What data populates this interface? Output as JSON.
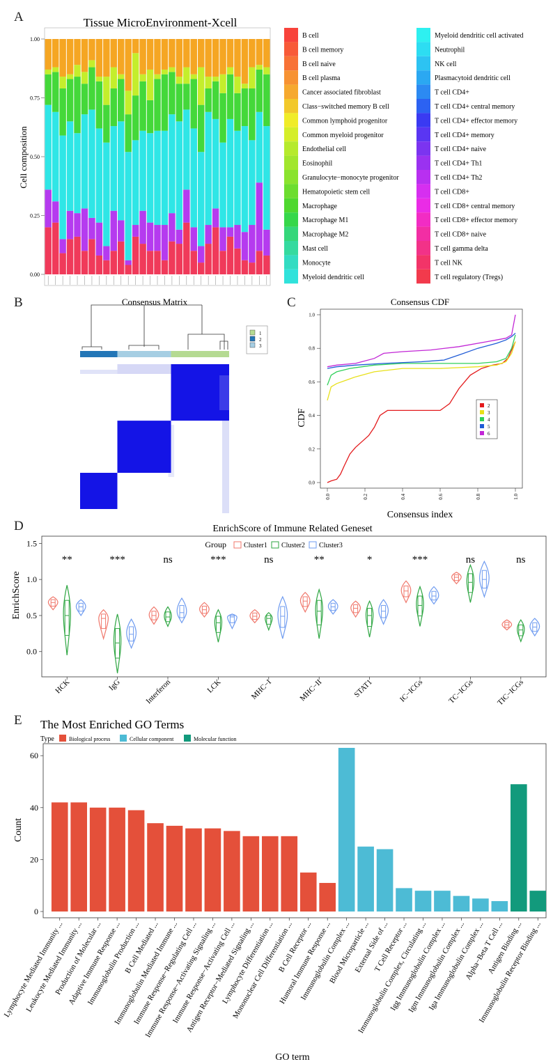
{
  "panels": {
    "A": "A",
    "B": "B",
    "C": "C",
    "D": "D",
    "E": "E"
  },
  "colors": {
    "gold": "#F5A623",
    "cluster1": "#F0776B",
    "cluster2": "#2EA642",
    "cluster3": "#6E9BF0",
    "bp": "#E4503A",
    "cc": "#4DBBD5",
    "mf": "#129A7C",
    "heat": "#1414E6"
  },
  "chart_data": [
    {
      "type": "bar",
      "stacked": true,
      "title": "Tissue MicroEnvironment-Xcell",
      "xlabel": "",
      "ylabel": "Cell composition",
      "ylim": [
        0,
        1
      ],
      "yticks": [
        "0.00",
        "0.25",
        "0.50",
        "0.75",
        "1.00"
      ],
      "n_samples": 31,
      "legend_position": "right",
      "cell_types": [
        {
          "name": "B cell",
          "color": "#F8433B"
        },
        {
          "name": "B cell memory",
          "color": "#F85A38"
        },
        {
          "name": "B cell naive",
          "color": "#F87236"
        },
        {
          "name": "B cell plasma",
          "color": "#F79232"
        },
        {
          "name": "Cancer associated fibroblast",
          "color": "#F6A92F"
        },
        {
          "name": "Class−switched memory B cell",
          "color": "#F2C82B"
        },
        {
          "name": "Common lymphoid progenitor",
          "color": "#F0EC29"
        },
        {
          "name": "Common myeloid progenitor",
          "color": "#D5EE2A"
        },
        {
          "name": "Endothelial cell",
          "color": "#B6EA2C"
        },
        {
          "name": "Eosinophil",
          "color": "#A2E62D"
        },
        {
          "name": "Granulocyte−monocyte progenitor",
          "color": "#8AE32E"
        },
        {
          "name": "Hematopoietic stem cell",
          "color": "#6CDD2F"
        },
        {
          "name": "Macrophage",
          "color": "#4FD82F"
        },
        {
          "name": "Macrophage M1",
          "color": "#36D74A"
        },
        {
          "name": "Macrophage M2",
          "color": "#35D77A"
        },
        {
          "name": "Mast cell",
          "color": "#35DA9F"
        },
        {
          "name": "Monocyte",
          "color": "#33DCC2"
        },
        {
          "name": "Myeloid dendritic cell",
          "color": "#30E2DB"
        },
        {
          "name": "Myeloid dendritic cell activated",
          "color": "#2EF0F0"
        },
        {
          "name": "Neutrophil",
          "color": "#2DDDF2"
        },
        {
          "name": "NK cell",
          "color": "#2DC3F2"
        },
        {
          "name": "Plasmacytoid dendritic cell",
          "color": "#2BA8F2"
        },
        {
          "name": "T cell CD4+",
          "color": "#2C8AF2"
        },
        {
          "name": "T cell CD4+ central memory",
          "color": "#2C62F2"
        },
        {
          "name": "T cell CD4+ effector memory",
          "color": "#3A3AF2"
        },
        {
          "name": "T cell CD4+ memory",
          "color": "#5A36F2"
        },
        {
          "name": "T cell CD4+ naive",
          "color": "#7B34F0"
        },
        {
          "name": "T cell CD4+ Th1",
          "color": "#9A32F0"
        },
        {
          "name": "T cell CD4+ Th2",
          "color": "#B830F0"
        },
        {
          "name": "T cell CD8+",
          "color": "#D62FF0"
        },
        {
          "name": "T cell CD8+ central memory",
          "color": "#EA2CE6"
        },
        {
          "name": "T cell CD8+ effector memory",
          "color": "#F22CC4"
        },
        {
          "name": "T cell CD8+ naive",
          "color": "#F22EA4"
        },
        {
          "name": "T cell gamma delta",
          "color": "#F23288"
        },
        {
          "name": "T cell NK",
          "color": "#F23468"
        },
        {
          "name": "T cell regulatory (Tregs)",
          "color": "#F23A4C"
        }
      ],
      "groups_note": "values per sample for grouped cell types: reds, blue/purple, cyan, green, yellow, orange",
      "group_colors": [
        "#F03A5A",
        "#B53BEF",
        "#2FE6E6",
        "#44D83A",
        "#C4EE2C",
        "#F5A623"
      ],
      "samples": [
        [
          0.2,
          0.16,
          0.36,
          0.13,
          0.02,
          0.13
        ],
        [
          0.22,
          0.09,
          0.38,
          0.17,
          0.02,
          0.12
        ],
        [
          0.09,
          0.06,
          0.44,
          0.2,
          0.05,
          0.16
        ],
        [
          0.15,
          0.12,
          0.38,
          0.18,
          0.02,
          0.15
        ],
        [
          0.16,
          0.1,
          0.34,
          0.24,
          0.05,
          0.11
        ],
        [
          0.1,
          0.18,
          0.4,
          0.13,
          0.05,
          0.14
        ],
        [
          0.15,
          0.09,
          0.46,
          0.18,
          0.03,
          0.09
        ],
        [
          0.08,
          0.14,
          0.4,
          0.2,
          0.02,
          0.16
        ],
        [
          0.06,
          0.06,
          0.44,
          0.16,
          0.12,
          0.16
        ],
        [
          0.1,
          0.17,
          0.36,
          0.16,
          0.09,
          0.12
        ],
        [
          0.14,
          0.09,
          0.42,
          0.18,
          0.02,
          0.15
        ],
        [
          0.04,
          0.02,
          0.46,
          0.16,
          0.1,
          0.22
        ],
        [
          0.16,
          0.05,
          0.36,
          0.19,
          0.18,
          0.06
        ],
        [
          0.13,
          0.14,
          0.34,
          0.21,
          0.03,
          0.15
        ],
        [
          0.1,
          0.12,
          0.38,
          0.14,
          0.13,
          0.13
        ],
        [
          0.1,
          0.11,
          0.4,
          0.22,
          0.02,
          0.15
        ],
        [
          0.06,
          0.15,
          0.4,
          0.24,
          0.02,
          0.13
        ],
        [
          0.14,
          0.12,
          0.42,
          0.18,
          0.02,
          0.12
        ],
        [
          0.13,
          0.06,
          0.46,
          0.16,
          0.03,
          0.16
        ],
        [
          0.22,
          0.14,
          0.34,
          0.11,
          0.07,
          0.12
        ],
        [
          0.1,
          0.1,
          0.42,
          0.21,
          0.02,
          0.15
        ],
        [
          0.05,
          0.07,
          0.4,
          0.2,
          0.16,
          0.12
        ],
        [
          0.13,
          0.08,
          0.48,
          0.1,
          0.05,
          0.16
        ],
        [
          0.2,
          0.08,
          0.38,
          0.16,
          0.02,
          0.16
        ],
        [
          0.1,
          0.1,
          0.36,
          0.21,
          0.08,
          0.15
        ],
        [
          0.16,
          0.04,
          0.46,
          0.19,
          0.03,
          0.12
        ],
        [
          0.11,
          0.1,
          0.4,
          0.16,
          0.07,
          0.16
        ],
        [
          0.06,
          0.12,
          0.45,
          0.16,
          0.02,
          0.19
        ],
        [
          0.05,
          0.16,
          0.36,
          0.22,
          0.09,
          0.12
        ],
        [
          0.1,
          0.29,
          0.3,
          0.18,
          0.02,
          0.11
        ],
        [
          0.08,
          0.11,
          0.44,
          0.22,
          0.03,
          0.12
        ]
      ]
    },
    {
      "type": "heatmap",
      "title": "Consensus Matrix",
      "legend": [
        "1",
        "2",
        "3"
      ],
      "legend_colors": [
        "#B5DA92",
        "#2376B7",
        "#A6CEE3"
      ],
      "clusters_order": [
        "2",
        "3",
        "1"
      ],
      "cluster_fraction": [
        0.25,
        0.36,
        0.39
      ]
    },
    {
      "type": "line",
      "title": "Consensus CDF",
      "xlabel": "Consensus index",
      "ylabel": "CDF",
      "xlim": [
        0,
        1
      ],
      "ylim": [
        0,
        1
      ],
      "xticks": [
        "0.0",
        "0.2",
        "0.4",
        "0.6",
        "0.8",
        "1.0"
      ],
      "yticks": [
        "0.0",
        "0.2",
        "0.4",
        "0.6",
        "0.8",
        "1.0"
      ],
      "legend_position": "right",
      "series": [
        {
          "name": "2",
          "color": "#E31A1C",
          "points": [
            [
              0,
              0.0
            ],
            [
              0.02,
              0.01
            ],
            [
              0.05,
              0.02
            ],
            [
              0.07,
              0.05
            ],
            [
              0.09,
              0.1
            ],
            [
              0.12,
              0.17
            ],
            [
              0.15,
              0.21
            ],
            [
              0.18,
              0.24
            ],
            [
              0.22,
              0.28
            ],
            [
              0.25,
              0.33
            ],
            [
              0.28,
              0.4
            ],
            [
              0.32,
              0.43
            ],
            [
              0.4,
              0.43
            ],
            [
              0.5,
              0.43
            ],
            [
              0.6,
              0.43
            ],
            [
              0.65,
              0.47
            ],
            [
              0.7,
              0.56
            ],
            [
              0.76,
              0.64
            ],
            [
              0.82,
              0.68
            ],
            [
              0.88,
              0.7
            ],
            [
              0.93,
              0.71
            ],
            [
              0.96,
              0.74
            ],
            [
              0.98,
              0.79
            ],
            [
              1.0,
              0.84
            ]
          ]
        },
        {
          "name": "3",
          "color": "#E8E01A",
          "points": [
            [
              0,
              0.49
            ],
            [
              0.02,
              0.57
            ],
            [
              0.05,
              0.59
            ],
            [
              0.1,
              0.61
            ],
            [
              0.15,
              0.63
            ],
            [
              0.25,
              0.66
            ],
            [
              0.4,
              0.68
            ],
            [
              0.6,
              0.68
            ],
            [
              0.8,
              0.69
            ],
            [
              0.9,
              0.7
            ],
            [
              0.95,
              0.72
            ],
            [
              0.98,
              0.77
            ],
            [
              1.0,
              0.84
            ]
          ]
        },
        {
          "name": "4",
          "color": "#30D05A",
          "points": [
            [
              0,
              0.58
            ],
            [
              0.02,
              0.64
            ],
            [
              0.05,
              0.66
            ],
            [
              0.12,
              0.68
            ],
            [
              0.25,
              0.7
            ],
            [
              0.4,
              0.71
            ],
            [
              0.6,
              0.71
            ],
            [
              0.8,
              0.71
            ],
            [
              0.9,
              0.72
            ],
            [
              0.95,
              0.74
            ],
            [
              0.98,
              0.8
            ],
            [
              1.0,
              0.88
            ]
          ]
        },
        {
          "name": "5",
          "color": "#1F5BD6",
          "points": [
            [
              0,
              0.68
            ],
            [
              0.05,
              0.69
            ],
            [
              0.15,
              0.7
            ],
            [
              0.3,
              0.71
            ],
            [
              0.5,
              0.72
            ],
            [
              0.62,
              0.73
            ],
            [
              0.7,
              0.76
            ],
            [
              0.8,
              0.8
            ],
            [
              0.9,
              0.83
            ],
            [
              0.95,
              0.85
            ],
            [
              0.98,
              0.87
            ],
            [
              1.0,
              0.89
            ]
          ]
        },
        {
          "name": "6",
          "color": "#C226D6",
          "points": [
            [
              0,
              0.69
            ],
            [
              0.05,
              0.7
            ],
            [
              0.15,
              0.71
            ],
            [
              0.25,
              0.74
            ],
            [
              0.3,
              0.77
            ],
            [
              0.4,
              0.78
            ],
            [
              0.55,
              0.79
            ],
            [
              0.7,
              0.81
            ],
            [
              0.85,
              0.84
            ],
            [
              0.95,
              0.86
            ],
            [
              0.98,
              0.88
            ],
            [
              1.0,
              1.0
            ]
          ]
        }
      ]
    },
    {
      "type": "violin",
      "title": "EnrichScore of Immune Related Geneset",
      "xlabel": "",
      "ylabel": "EnrichScore",
      "ylim": [
        -0.35,
        1.6
      ],
      "yticks": [
        "0.0",
        "0.5",
        "1.0",
        "1.5"
      ],
      "legend_title": "Group",
      "legend": [
        "Cluster1",
        "Cluster2",
        "Cluster3"
      ],
      "legend_position": "top",
      "categories": [
        "HCK",
        "IgG",
        "Interferon",
        "LCK",
        "MHC−I",
        "MHC−II",
        "STAT1",
        "IC−ICGs",
        "TC−ICGs",
        "TIC−ICGs"
      ],
      "significance": [
        "**",
        "***",
        "ns",
        "***",
        "ns",
        "**",
        "*",
        "***",
        "ns",
        "ns"
      ],
      "series": [
        {
          "name": "Cluster1",
          "median": [
            0.68,
            0.46,
            0.5,
            0.58,
            0.49,
            0.7,
            0.6,
            0.84,
            1.03,
            0.37
          ],
          "low": [
            0.58,
            0.18,
            0.38,
            0.48,
            0.4,
            0.55,
            0.48,
            0.68,
            0.94,
            0.3
          ],
          "high": [
            0.76,
            0.58,
            0.62,
            0.68,
            0.58,
            0.82,
            0.7,
            0.98,
            1.1,
            0.44
          ]
        },
        {
          "name": "Cluster2",
          "median": [
            0.5,
            0.12,
            0.48,
            0.4,
            0.46,
            0.56,
            0.5,
            0.64,
            0.96,
            0.3
          ],
          "low": [
            -0.05,
            -0.3,
            0.35,
            0.13,
            0.3,
            0.18,
            0.2,
            0.35,
            0.68,
            0.14
          ],
          "high": [
            0.92,
            0.52,
            0.62,
            0.58,
            0.54,
            0.86,
            0.7,
            0.9,
            1.2,
            0.44
          ]
        },
        {
          "name": "Cluster3",
          "median": [
            0.62,
            0.24,
            0.54,
            0.48,
            0.49,
            0.62,
            0.56,
            0.77,
            1.0,
            0.34
          ],
          "low": [
            0.5,
            0.05,
            0.4,
            0.32,
            0.18,
            0.52,
            0.38,
            0.66,
            0.76,
            0.22
          ],
          "high": [
            0.72,
            0.45,
            0.74,
            0.52,
            0.76,
            0.72,
            0.72,
            0.9,
            1.25,
            0.46
          ]
        }
      ]
    },
    {
      "type": "bar",
      "title": "The Most Enriched GO Terms",
      "xlabel": "GO term",
      "ylabel": "Count",
      "ylim": [
        0,
        65
      ],
      "yticks": [
        "0",
        "20",
        "40",
        "60"
      ],
      "legend_title": "Type",
      "legend": [
        "Biological process",
        "Cellular component",
        "Molecular function"
      ],
      "legend_position": "top",
      "categories": [
        "Lymphocyte Mediated Immunity ...",
        "Leukocyte Mediated Immunity ...",
        "Production of Molecular ...",
        "Adaptive Immune Response ...",
        "Immunoglobulin Production ...",
        "B Cell Mediated ...",
        "Immunoglobulin Mediated Immune ...",
        "Immune Response−Regulating Cell ...",
        "Immune Response−Activating Signaling ...",
        "Immune Response−Activating Cell ...",
        "Antigen Receptor−Mediated Signaling ...",
        "Lymphocyte Differentiation ...",
        "Mononuclear Cell Differentiation ...",
        "B Cell Receptor ...",
        "Humoral Immune Response ...",
        "Immunoglobulin Complex ...",
        "Blood Microparticle ...",
        "External Side of ...",
        "T Cell Receptor ...",
        "Immunoglobulin Complex, Circulating ...",
        "Igg Immunoglobulin Complex ...",
        "Igm Immunoglobulin Complex ...",
        "Iga Immunoglobulin Complex ...",
        "Alpha−Beta T Cell ...",
        "Antigen Binding ...",
        "Immunoglobulin Receptor Binding ..."
      ],
      "values": [
        42,
        42,
        40,
        40,
        39,
        34,
        33,
        32,
        32,
        31,
        29,
        29,
        29,
        15,
        11,
        63,
        25,
        24,
        9,
        8,
        8,
        6,
        5,
        4,
        49,
        8
      ],
      "types": [
        "BP",
        "BP",
        "BP",
        "BP",
        "BP",
        "BP",
        "BP",
        "BP",
        "BP",
        "BP",
        "BP",
        "BP",
        "BP",
        "BP",
        "BP",
        "CC",
        "CC",
        "CC",
        "CC",
        "CC",
        "CC",
        "CC",
        "CC",
        "CC",
        "MF",
        "MF"
      ]
    }
  ]
}
